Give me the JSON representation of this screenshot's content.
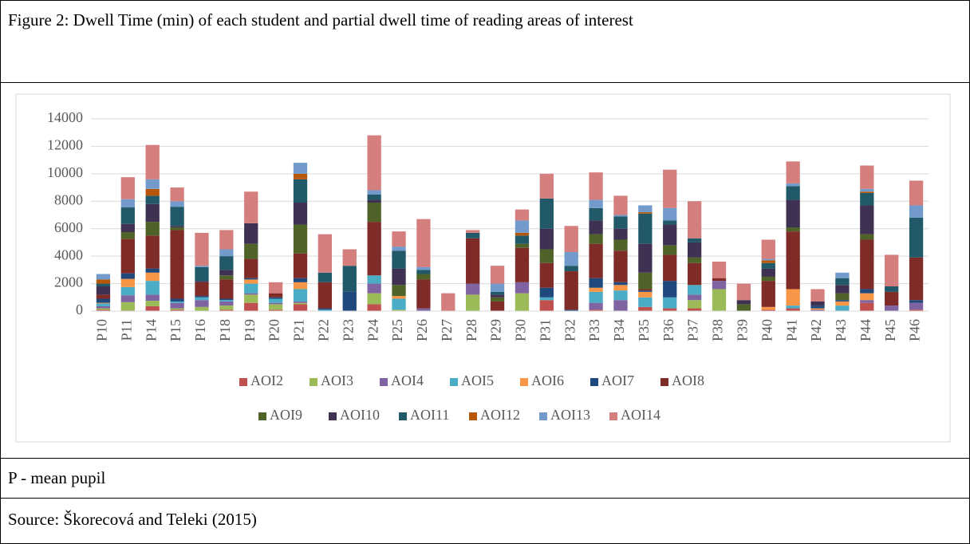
{
  "caption": "Figure 2: Dwell Time (min) of each student and partial dwell time of reading areas of interest",
  "chart_data": {
    "type": "stacked_bar",
    "categories": [
      "P10",
      "P11",
      "P14",
      "P15",
      "P16",
      "P18",
      "P19",
      "P20",
      "P21",
      "P22",
      "P23",
      "P24",
      "P25",
      "P26",
      "P27",
      "P28",
      "P29",
      "P30",
      "P31",
      "P32",
      "P33",
      "P34",
      "P35",
      "P36",
      "P37",
      "P38",
      "P39",
      "P40",
      "P41",
      "P42",
      "P43",
      "P44",
      "P45",
      "P46"
    ],
    "ylim": [
      0,
      14000
    ],
    "yticks": [
      0,
      2000,
      4000,
      6000,
      8000,
      10000,
      12000,
      14000
    ],
    "grid": true,
    "legend": "bottom",
    "series": [
      {
        "name": "AOI2",
        "color": "#c0504d",
        "values": [
          100,
          50,
          350,
          100,
          0,
          100,
          600,
          100,
          500,
          0,
          0,
          500,
          0,
          0,
          0,
          0,
          0,
          0,
          800,
          0,
          100,
          0,
          300,
          200,
          200,
          0,
          0,
          100,
          200,
          0,
          0,
          600,
          0,
          100
        ]
      },
      {
        "name": "AOI3",
        "color": "#9bbb59",
        "values": [
          100,
          600,
          400,
          100,
          300,
          300,
          600,
          400,
          100,
          0,
          0,
          800,
          100,
          0,
          0,
          1200,
          0,
          1300,
          0,
          0,
          0,
          0,
          0,
          0,
          600,
          1600,
          0,
          0,
          0,
          0,
          0,
          0,
          0,
          0
        ]
      },
      {
        "name": "AOI4",
        "color": "#8064a2",
        "values": [
          150,
          500,
          450,
          400,
          500,
          300,
          100,
          100,
          100,
          0,
          0,
          700,
          0,
          200,
          0,
          800,
          0,
          800,
          0,
          0,
          500,
          800,
          0,
          0,
          400,
          600,
          0,
          0,
          0,
          100,
          0,
          200,
          400,
          500
        ]
      },
      {
        "name": "AOI5",
        "color": "#4bacc6",
        "values": [
          200,
          600,
          1000,
          100,
          200,
          100,
          700,
          300,
          900,
          100,
          0,
          600,
          800,
          0,
          0,
          0,
          0,
          0,
          200,
          0,
          800,
          700,
          700,
          800,
          700,
          0,
          0,
          0,
          200,
          0,
          400,
          0,
          0,
          0
        ]
      },
      {
        "name": "AOI6",
        "color": "#f79646",
        "values": [
          50,
          600,
          600,
          0,
          0,
          0,
          300,
          0,
          500,
          0,
          0,
          0,
          200,
          0,
          0,
          0,
          0,
          0,
          0,
          0,
          300,
          400,
          400,
          0,
          0,
          0,
          0,
          200,
          1200,
          100,
          300,
          500,
          0,
          0
        ]
      },
      {
        "name": "AOI7",
        "color": "#1f497d",
        "values": [
          300,
          400,
          300,
          200,
          100,
          100,
          100,
          100,
          300,
          100,
          1400,
          0,
          0,
          0,
          0,
          0,
          0,
          0,
          700,
          100,
          700,
          200,
          100,
          1200,
          0,
          0,
          0,
          0,
          0,
          200,
          100,
          300,
          0,
          200
        ]
      },
      {
        "name": "AOI8",
        "color": "#7f2b28",
        "values": [
          300,
          2500,
          2400,
          5000,
          1000,
          1400,
          1400,
          300,
          1800,
          1900,
          0,
          3900,
          0,
          2100,
          0,
          3300,
          700,
          2500,
          1800,
          2800,
          2500,
          2300,
          100,
          1900,
          1600,
          200,
          0,
          1900,
          4200,
          0,
          0,
          3600,
          1000,
          3100
        ]
      },
      {
        "name": "AOI9",
        "color": "#4f6228",
        "values": [
          0,
          500,
          1000,
          200,
          0,
          300,
          1100,
          0,
          2100,
          0,
          0,
          1400,
          800,
          400,
          0,
          0,
          300,
          300,
          1000,
          0,
          700,
          800,
          1200,
          700,
          400,
          0,
          500,
          300,
          300,
          0,
          500,
          400,
          0,
          0
        ]
      },
      {
        "name": "AOI10",
        "color": "#3f3151",
        "values": [
          600,
          600,
          1300,
          100,
          100,
          400,
          1500,
          0,
          1600,
          0,
          0,
          200,
          1200,
          0,
          0,
          0,
          200,
          0,
          1500,
          0,
          1000,
          800,
          2100,
          1500,
          1100,
          0,
          300,
          600,
          2000,
          300,
          600,
          2100,
          0,
          0
        ]
      },
      {
        "name": "AOI11",
        "color": "#215968",
        "values": [
          200,
          1200,
          600,
          1400,
          1000,
          1000,
          0,
          0,
          1700,
          700,
          1900,
          400,
          1300,
          300,
          0,
          400,
          200,
          600,
          2200,
          400,
          900,
          900,
          2200,
          300,
          300,
          0,
          0,
          400,
          1000,
          0,
          500,
          900,
          400,
          2900
        ]
      },
      {
        "name": "AOI12",
        "color": "#b65708",
        "values": [
          300,
          0,
          500,
          0,
          0,
          0,
          0,
          0,
          400,
          0,
          0,
          0,
          0,
          0,
          0,
          0,
          0,
          200,
          0,
          0,
          0,
          0,
          100,
          0,
          0,
          0,
          0,
          200,
          0,
          0,
          0,
          100,
          0,
          0
        ]
      },
      {
        "name": "AOI13",
        "color": "#729aca",
        "values": [
          400,
          600,
          700,
          400,
          100,
          500,
          0,
          0,
          800,
          0,
          0,
          300,
          300,
          200,
          0,
          0,
          600,
          900,
          0,
          1000,
          600,
          100,
          500,
          900,
          0,
          0,
          0,
          100,
          200,
          0,
          400,
          200,
          0,
          900
        ]
      },
      {
        "name": "AOI14",
        "color": "#d47f7d",
        "values": [
          0,
          1600,
          2500,
          1000,
          2400,
          1400,
          2300,
          800,
          0,
          2800,
          1200,
          4000,
          1100,
          3500,
          1300,
          200,
          1300,
          800,
          1800,
          1900,
          2000,
          1400,
          0,
          2800,
          2700,
          1200,
          1200,
          1400,
          1600,
          900,
          0,
          1700,
          2300,
          1800
        ]
      }
    ]
  },
  "note": "P - mean pupil",
  "source": "Source: Škorecová and Teleki (2015)"
}
